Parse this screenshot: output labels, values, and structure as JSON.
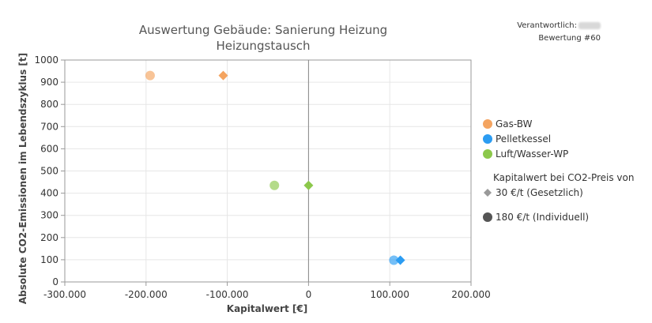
{
  "meta": {
    "responsible_label": "Verantwortlich:",
    "rating_label": "Bewertung #60"
  },
  "chart_data": {
    "type": "scatter",
    "title": "Auswertung Gebäude: Sanierung Heizung",
    "subtitle": "Heizungstausch",
    "xlabel": "Kapitalwert [€]",
    "ylabel": "Absolute CO2-Emissionen im Lebendszyklus [t]",
    "xlim": [
      -300000,
      200000
    ],
    "ylim": [
      0,
      1000
    ],
    "x_ticks": [
      -300000,
      -200000,
      -100000,
      0,
      100000,
      200000
    ],
    "x_tick_labels": [
      "-300.000",
      "-200.000",
      "-100.000",
      "0",
      "100.000",
      "200.000"
    ],
    "y_ticks": [
      0,
      100,
      200,
      300,
      400,
      500,
      600,
      700,
      800,
      900,
      1000
    ],
    "y_tick_labels": [
      "0",
      "100",
      "200",
      "300",
      "400",
      "500",
      "600",
      "700",
      "800",
      "900",
      "1000"
    ],
    "grid": true,
    "legend_position": "right",
    "series": [
      {
        "name": "Gas-BW",
        "color": "#f4a460",
        "points": [
          {
            "x": -105000,
            "y": 930,
            "marker": "diamond"
          },
          {
            "x": -195000,
            "y": 930,
            "marker": "circle"
          }
        ]
      },
      {
        "name": "Pelletkessel",
        "color": "#2b9cf2",
        "points": [
          {
            "x": 113000,
            "y": 98,
            "marker": "diamond"
          },
          {
            "x": 105000,
            "y": 98,
            "marker": "circle"
          }
        ]
      },
      {
        "name": "Luft/Wasser-WP",
        "color": "#8cc84b",
        "points": [
          {
            "x": 0,
            "y": 435,
            "marker": "diamond"
          },
          {
            "x": -42000,
            "y": 435,
            "marker": "circle"
          }
        ]
      }
    ],
    "marker_legend": {
      "heading": "Kapitalwert bei CO2-Preis von",
      "items": [
        {
          "label": "30 €/t (Gesetzlich)",
          "marker": "diamond",
          "color": "#999999"
        },
        {
          "label": "180 €/t (Individuell)",
          "marker": "circle",
          "color": "#555555"
        }
      ]
    }
  }
}
